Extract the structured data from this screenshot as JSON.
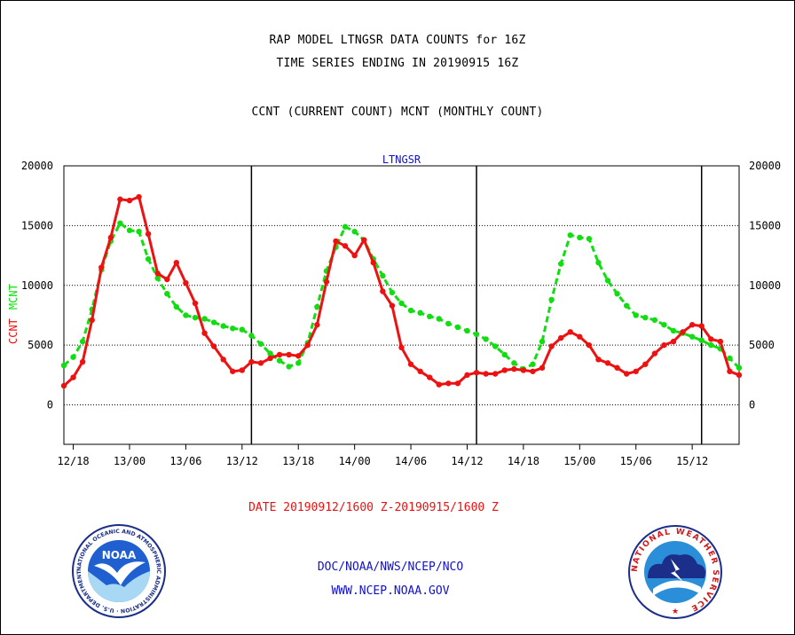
{
  "header": {
    "line1": "RAP MODEL LTNGSR DATA COUNTS for 16Z",
    "line2": "TIME SERIES ENDING IN 20190915 16Z",
    "line3": "CCNT (CURRENT COUNT) MCNT (MONTHLY COUNT)"
  },
  "footer": {
    "date_range": "DATE 20190912/1600 Z-20190915/1600 Z",
    "agency": "DOC/NOAA/NWS/NCEP/NCO",
    "website": "WWW.NCEP.NOAA.GOV"
  },
  "logos": {
    "noaa_text": "NOAA",
    "noaa_ring": "NATIONAL OCEANIC AND ATMOSPHERIC ADMINISTRATION · U.S. DEPARTMENT OF COMMERCE",
    "nws_ring": "NATIONAL WEATHER SERVICE"
  },
  "colors": {
    "ccnt": "#ee1111",
    "mcnt": "#11dd11",
    "title_blue": "#1111cc",
    "footer_red": "#ee1111",
    "footer_blue": "#1111cc"
  },
  "chart_data": {
    "type": "line",
    "title": "LTNGSR",
    "ylabel_left": [
      "CCNT",
      "MCNT"
    ],
    "ylim": [
      -3300,
      20000
    ],
    "yticks": [
      0,
      5000,
      10000,
      15000,
      20000
    ],
    "ytick_labels": [
      "0",
      "5000",
      "10000",
      "15000",
      "20000"
    ],
    "xlim": [
      0,
      72
    ],
    "xticks": [
      1,
      7,
      13,
      19,
      25,
      31,
      37,
      43,
      49,
      55,
      61,
      67
    ],
    "xtick_labels": [
      "12/18",
      "13/00",
      "13/06",
      "13/12",
      "13/18",
      "14/00",
      "14/06",
      "14/12",
      "14/18",
      "15/00",
      "15/06",
      "15/12"
    ],
    "day_boundaries": [
      20,
      44,
      68
    ],
    "grid": "dotted horizontal",
    "series": [
      {
        "name": "CCNT",
        "color": "#ee1111",
        "x": [
          0,
          1,
          2,
          3,
          4,
          5,
          6,
          7,
          8,
          9,
          10,
          11,
          12,
          13,
          14,
          15,
          16,
          17,
          18,
          19,
          20,
          21,
          22,
          23,
          24,
          25,
          26,
          27,
          28,
          29,
          30,
          31,
          32,
          33,
          34,
          35,
          36,
          37,
          38,
          39,
          40,
          41,
          42,
          43,
          44,
          45,
          46,
          47,
          48,
          49,
          50,
          51,
          52,
          53,
          54,
          55,
          56,
          57,
          58,
          59,
          60,
          61,
          62,
          63,
          64,
          65,
          66,
          67,
          68,
          69,
          70,
          71,
          72
        ],
        "values": [
          1600,
          2300,
          3600,
          7100,
          11500,
          14000,
          17200,
          17100,
          17400,
          14300,
          11000,
          10500,
          11900,
          10200,
          8500,
          6000,
          4900,
          3800,
          2800,
          2900,
          3600,
          3500,
          3900,
          4200,
          4200,
          4100,
          5000,
          6700,
          10300,
          13700,
          13300,
          12500,
          13800,
          11900,
          9500,
          8300,
          4800,
          3400,
          2800,
          2300,
          1700,
          1800,
          1800,
          2500,
          2700,
          2600,
          2600,
          2900,
          3000,
          2900,
          2800,
          3100,
          4900,
          5600,
          6100,
          5700,
          5000,
          3800,
          3500,
          3100,
          2600,
          2800,
          3400,
          4300,
          5000,
          5300,
          6100,
          6700,
          6600,
          5500,
          5300,
          2800,
          2500
        ]
      },
      {
        "name": "MCNT",
        "color": "#11dd11",
        "x": [
          0,
          1,
          2,
          3,
          4,
          5,
          6,
          7,
          8,
          9,
          10,
          11,
          12,
          13,
          14,
          15,
          16,
          17,
          18,
          19,
          20,
          21,
          22,
          23,
          24,
          25,
          26,
          27,
          28,
          29,
          30,
          31,
          32,
          33,
          34,
          35,
          36,
          37,
          38,
          39,
          40,
          41,
          42,
          43,
          44,
          45,
          46,
          47,
          48,
          49,
          50,
          51,
          52,
          53,
          54,
          55,
          56,
          57,
          58,
          59,
          60,
          61,
          62,
          63,
          64,
          65,
          66,
          67,
          68,
          69,
          70,
          71,
          72
        ],
        "values": [
          3300,
          4000,
          5300,
          8000,
          11300,
          13700,
          15200,
          14600,
          14500,
          12200,
          10600,
          9300,
          8200,
          7500,
          7300,
          7200,
          6900,
          6600,
          6400,
          6300,
          5800,
          5100,
          4300,
          3700,
          3200,
          3500,
          5200,
          8200,
          11200,
          13200,
          14900,
          14500,
          13800,
          12200,
          10800,
          9400,
          8500,
          7900,
          7700,
          7400,
          7200,
          6800,
          6500,
          6200,
          5900,
          5500,
          4900,
          4200,
          3500,
          3000,
          3400,
          5300,
          8800,
          11800,
          14200,
          14000,
          13900,
          11900,
          10400,
          9300,
          8300,
          7500,
          7300,
          7100,
          6700,
          6200,
          6000,
          5700,
          5400,
          5000,
          4700,
          3900,
          3100
        ]
      }
    ]
  }
}
